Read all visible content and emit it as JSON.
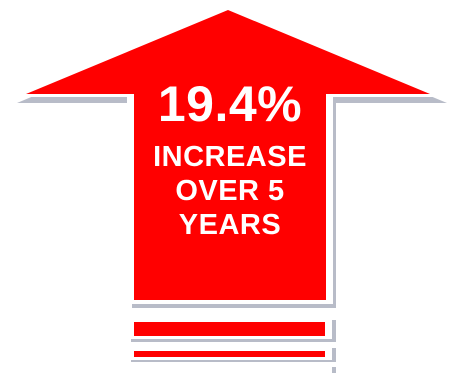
{
  "graphic": {
    "headline": "19.4%",
    "lines": [
      "INCREASE",
      "OVER 5",
      "YEARS"
    ],
    "colors": {
      "arrow_fill": "#ff0000",
      "arrow_outline": "#ffffff",
      "shadow": "#b8bcc8",
      "text": "#ffffff"
    },
    "icon": "up-arrow-icon"
  }
}
